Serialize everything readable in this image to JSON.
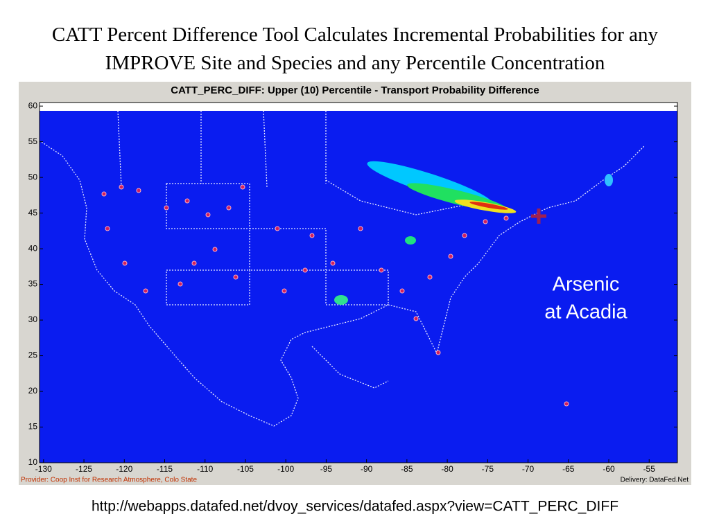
{
  "slide": {
    "title": "CATT Percent Difference Tool Calculates Incremental Probabilities for any IMPROVE Site and Species and any Percentile Concentration",
    "url": "http://webapps.datafed.net/dvoy_services/datafed.aspx?view=CATT_PERC_DIFF"
  },
  "map": {
    "title": "CATT_PERC_DIFF: Upper (10) Percentile - Transport Probability Difference",
    "annotation": [
      "Arsenic",
      "at Acadia"
    ],
    "provider": "Provider: Coop Inst for Research Atmosphere, Colo State",
    "delivery": "Delivery: DataFed.Net",
    "xlim": [
      -130.5,
      -51.5
    ],
    "ylim": [
      10,
      60.5
    ],
    "xticks": [
      -130,
      -125,
      -120,
      -115,
      -110,
      -105,
      -100,
      -95,
      -90,
      -85,
      -80,
      -75,
      -70,
      -65,
      -60,
      -55
    ],
    "yticks": [
      10,
      15,
      20,
      25,
      30,
      35,
      40,
      45,
      50,
      55,
      60
    ]
  }
}
